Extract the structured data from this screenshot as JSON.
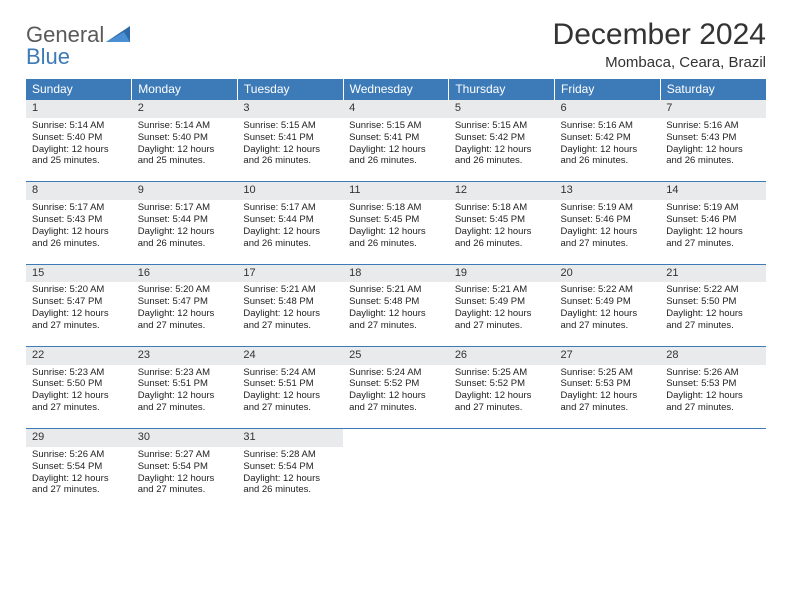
{
  "logo": {
    "general": "General",
    "blue": "Blue"
  },
  "header": {
    "title": "December 2024",
    "location": "Mombaca, Ceara, Brazil"
  },
  "theme": {
    "header_bg": "#3d7bb8",
    "header_text": "#ffffff",
    "daynum_bg": "#e9eaeb",
    "daynum_border": "#3d7bb8",
    "body_text": "#222222",
    "title_color": "#333333",
    "logo_gray": "#5a5a5a",
    "logo_blue": "#3d7bb8",
    "font_family": "Arial",
    "month_title_fontsize": 30,
    "location_fontsize": 15,
    "weekday_fontsize": 12,
    "daynum_fontsize": 11,
    "detail_fontsize": 9.5
  },
  "weekdays": [
    "Sunday",
    "Monday",
    "Tuesday",
    "Wednesday",
    "Thursday",
    "Friday",
    "Saturday"
  ],
  "weeks": [
    [
      {
        "n": "1",
        "sr": "Sunrise: 5:14 AM",
        "ss": "Sunset: 5:40 PM",
        "d1": "Daylight: 12 hours",
        "d2": "and 25 minutes."
      },
      {
        "n": "2",
        "sr": "Sunrise: 5:14 AM",
        "ss": "Sunset: 5:40 PM",
        "d1": "Daylight: 12 hours",
        "d2": "and 25 minutes."
      },
      {
        "n": "3",
        "sr": "Sunrise: 5:15 AM",
        "ss": "Sunset: 5:41 PM",
        "d1": "Daylight: 12 hours",
        "d2": "and 26 minutes."
      },
      {
        "n": "4",
        "sr": "Sunrise: 5:15 AM",
        "ss": "Sunset: 5:41 PM",
        "d1": "Daylight: 12 hours",
        "d2": "and 26 minutes."
      },
      {
        "n": "5",
        "sr": "Sunrise: 5:15 AM",
        "ss": "Sunset: 5:42 PM",
        "d1": "Daylight: 12 hours",
        "d2": "and 26 minutes."
      },
      {
        "n": "6",
        "sr": "Sunrise: 5:16 AM",
        "ss": "Sunset: 5:42 PM",
        "d1": "Daylight: 12 hours",
        "d2": "and 26 minutes."
      },
      {
        "n": "7",
        "sr": "Sunrise: 5:16 AM",
        "ss": "Sunset: 5:43 PM",
        "d1": "Daylight: 12 hours",
        "d2": "and 26 minutes."
      }
    ],
    [
      {
        "n": "8",
        "sr": "Sunrise: 5:17 AM",
        "ss": "Sunset: 5:43 PM",
        "d1": "Daylight: 12 hours",
        "d2": "and 26 minutes."
      },
      {
        "n": "9",
        "sr": "Sunrise: 5:17 AM",
        "ss": "Sunset: 5:44 PM",
        "d1": "Daylight: 12 hours",
        "d2": "and 26 minutes."
      },
      {
        "n": "10",
        "sr": "Sunrise: 5:17 AM",
        "ss": "Sunset: 5:44 PM",
        "d1": "Daylight: 12 hours",
        "d2": "and 26 minutes."
      },
      {
        "n": "11",
        "sr": "Sunrise: 5:18 AM",
        "ss": "Sunset: 5:45 PM",
        "d1": "Daylight: 12 hours",
        "d2": "and 26 minutes."
      },
      {
        "n": "12",
        "sr": "Sunrise: 5:18 AM",
        "ss": "Sunset: 5:45 PM",
        "d1": "Daylight: 12 hours",
        "d2": "and 26 minutes."
      },
      {
        "n": "13",
        "sr": "Sunrise: 5:19 AM",
        "ss": "Sunset: 5:46 PM",
        "d1": "Daylight: 12 hours",
        "d2": "and 27 minutes."
      },
      {
        "n": "14",
        "sr": "Sunrise: 5:19 AM",
        "ss": "Sunset: 5:46 PM",
        "d1": "Daylight: 12 hours",
        "d2": "and 27 minutes."
      }
    ],
    [
      {
        "n": "15",
        "sr": "Sunrise: 5:20 AM",
        "ss": "Sunset: 5:47 PM",
        "d1": "Daylight: 12 hours",
        "d2": "and 27 minutes."
      },
      {
        "n": "16",
        "sr": "Sunrise: 5:20 AM",
        "ss": "Sunset: 5:47 PM",
        "d1": "Daylight: 12 hours",
        "d2": "and 27 minutes."
      },
      {
        "n": "17",
        "sr": "Sunrise: 5:21 AM",
        "ss": "Sunset: 5:48 PM",
        "d1": "Daylight: 12 hours",
        "d2": "and 27 minutes."
      },
      {
        "n": "18",
        "sr": "Sunrise: 5:21 AM",
        "ss": "Sunset: 5:48 PM",
        "d1": "Daylight: 12 hours",
        "d2": "and 27 minutes."
      },
      {
        "n": "19",
        "sr": "Sunrise: 5:21 AM",
        "ss": "Sunset: 5:49 PM",
        "d1": "Daylight: 12 hours",
        "d2": "and 27 minutes."
      },
      {
        "n": "20",
        "sr": "Sunrise: 5:22 AM",
        "ss": "Sunset: 5:49 PM",
        "d1": "Daylight: 12 hours",
        "d2": "and 27 minutes."
      },
      {
        "n": "21",
        "sr": "Sunrise: 5:22 AM",
        "ss": "Sunset: 5:50 PM",
        "d1": "Daylight: 12 hours",
        "d2": "and 27 minutes."
      }
    ],
    [
      {
        "n": "22",
        "sr": "Sunrise: 5:23 AM",
        "ss": "Sunset: 5:50 PM",
        "d1": "Daylight: 12 hours",
        "d2": "and 27 minutes."
      },
      {
        "n": "23",
        "sr": "Sunrise: 5:23 AM",
        "ss": "Sunset: 5:51 PM",
        "d1": "Daylight: 12 hours",
        "d2": "and 27 minutes."
      },
      {
        "n": "24",
        "sr": "Sunrise: 5:24 AM",
        "ss": "Sunset: 5:51 PM",
        "d1": "Daylight: 12 hours",
        "d2": "and 27 minutes."
      },
      {
        "n": "25",
        "sr": "Sunrise: 5:24 AM",
        "ss": "Sunset: 5:52 PM",
        "d1": "Daylight: 12 hours",
        "d2": "and 27 minutes."
      },
      {
        "n": "26",
        "sr": "Sunrise: 5:25 AM",
        "ss": "Sunset: 5:52 PM",
        "d1": "Daylight: 12 hours",
        "d2": "and 27 minutes."
      },
      {
        "n": "27",
        "sr": "Sunrise: 5:25 AM",
        "ss": "Sunset: 5:53 PM",
        "d1": "Daylight: 12 hours",
        "d2": "and 27 minutes."
      },
      {
        "n": "28",
        "sr": "Sunrise: 5:26 AM",
        "ss": "Sunset: 5:53 PM",
        "d1": "Daylight: 12 hours",
        "d2": "and 27 minutes."
      }
    ],
    [
      {
        "n": "29",
        "sr": "Sunrise: 5:26 AM",
        "ss": "Sunset: 5:54 PM",
        "d1": "Daylight: 12 hours",
        "d2": "and 27 minutes."
      },
      {
        "n": "30",
        "sr": "Sunrise: 5:27 AM",
        "ss": "Sunset: 5:54 PM",
        "d1": "Daylight: 12 hours",
        "d2": "and 27 minutes."
      },
      {
        "n": "31",
        "sr": "Sunrise: 5:28 AM",
        "ss": "Sunset: 5:54 PM",
        "d1": "Daylight: 12 hours",
        "d2": "and 26 minutes."
      },
      null,
      null,
      null,
      null
    ]
  ]
}
